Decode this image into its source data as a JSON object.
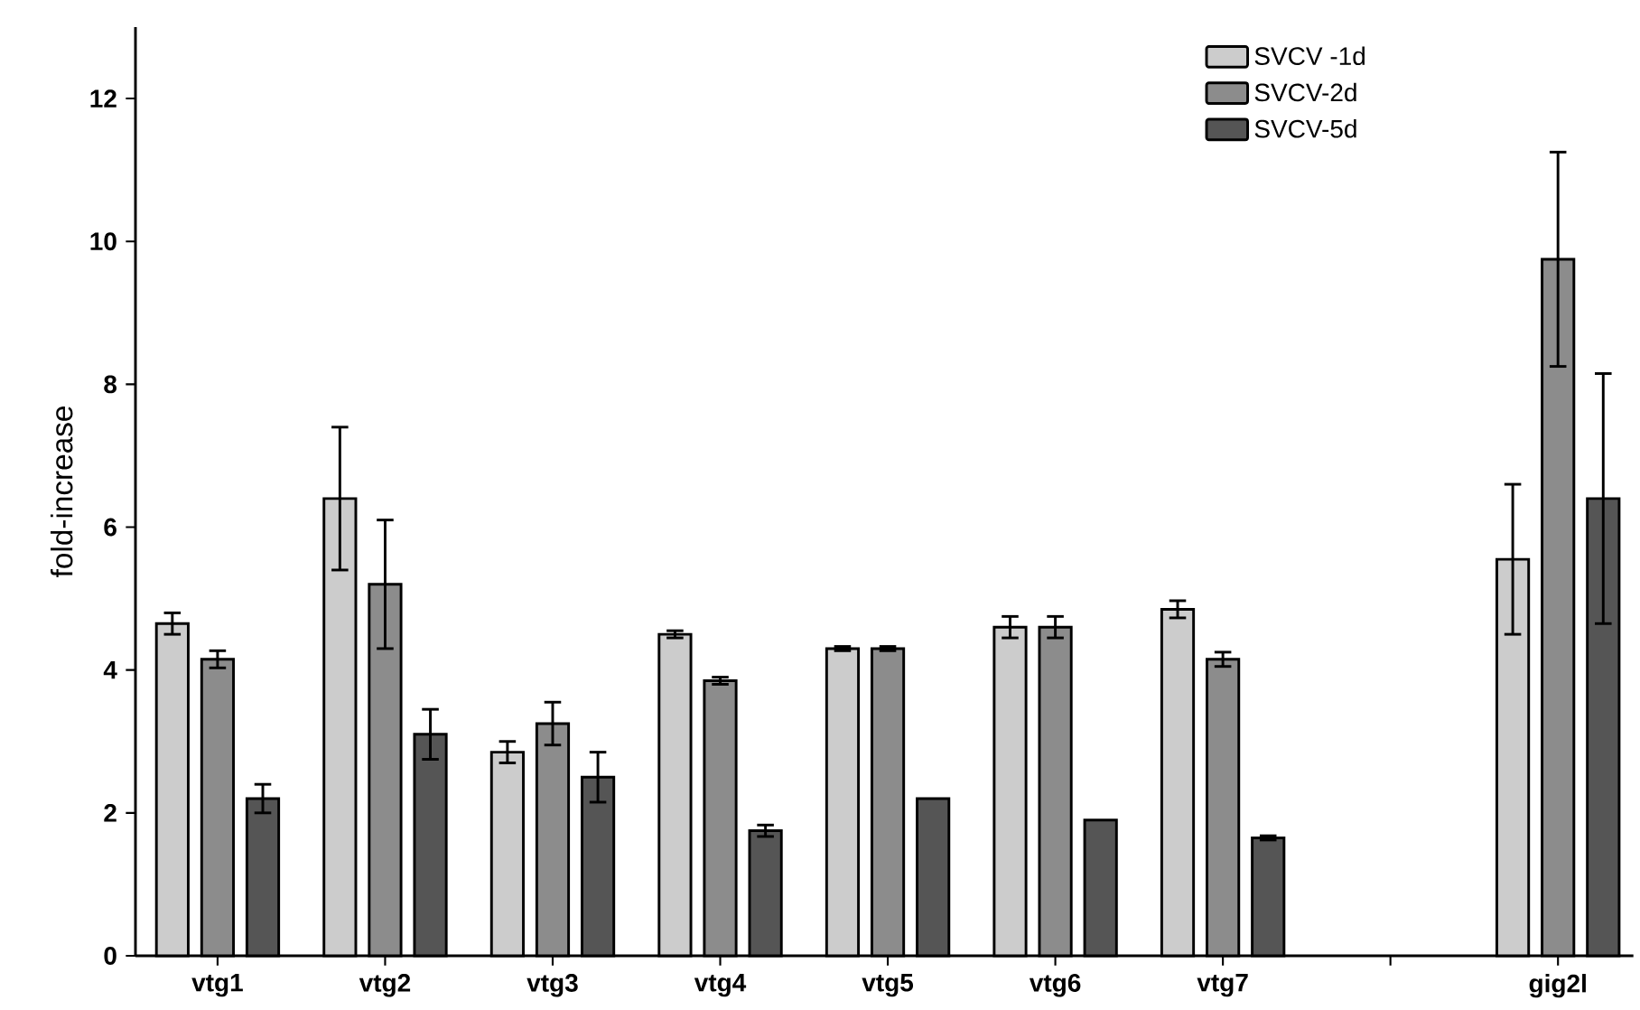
{
  "chart_data": {
    "type": "bar",
    "ylabel": "fold-increase",
    "categories": [
      "vtg1",
      "vtg2",
      "vtg3",
      "vtg4",
      "vtg5",
      "vtg6",
      "vtg7",
      null,
      "gig2l"
    ],
    "series": [
      {
        "name": "SVCV -1d",
        "color": "#cccccc",
        "values": [
          4.65,
          6.4,
          2.85,
          4.5,
          4.3,
          4.6,
          4.85,
          null,
          5.55
        ],
        "errors": [
          0.15,
          1.0,
          0.15,
          0.05,
          0.03,
          0.15,
          0.12,
          null,
          1.05
        ]
      },
      {
        "name": "SVCV-2d",
        "color": "#8c8c8c",
        "values": [
          4.15,
          5.2,
          3.25,
          3.85,
          4.3,
          4.6,
          4.15,
          null,
          9.75
        ],
        "errors": [
          0.12,
          0.9,
          0.3,
          0.05,
          0.03,
          0.15,
          0.1,
          null,
          1.5
        ]
      },
      {
        "name": "SVCV-5d",
        "color": "#555555",
        "values": [
          2.2,
          3.1,
          2.5,
          1.75,
          2.2,
          1.9,
          1.65,
          null,
          6.4
        ],
        "errors": [
          0.2,
          0.35,
          0.35,
          0.08,
          null,
          null,
          0.03,
          null,
          1.75
        ]
      }
    ],
    "ylim": [
      0,
      13
    ],
    "yticks": [
      0,
      2,
      4,
      6,
      8,
      10,
      12
    ],
    "legend": "top right",
    "grid": false
  }
}
